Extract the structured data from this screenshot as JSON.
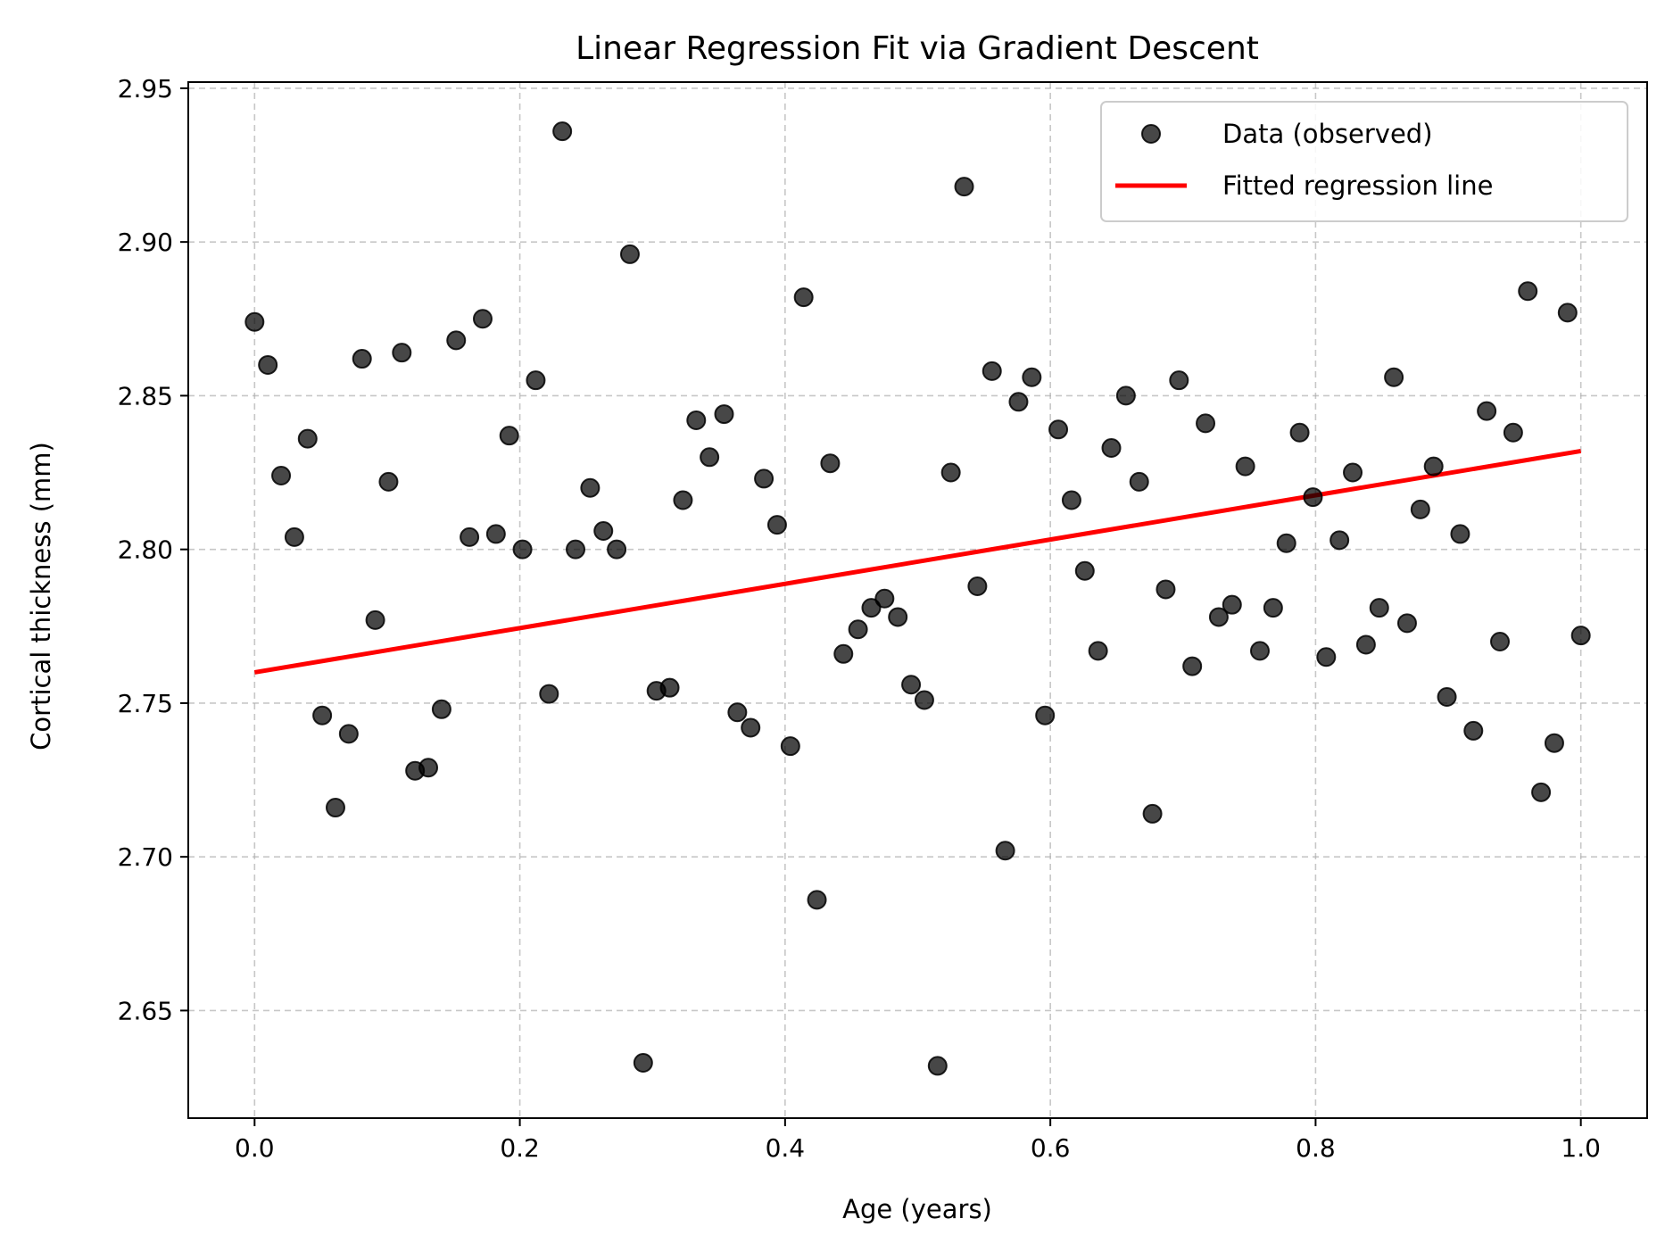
{
  "chart_data": {
    "type": "scatter",
    "title": "Linear Regression Fit via Gradient Descent",
    "xlabel": "Age (years)",
    "ylabel": "Cortical thickness (mm)",
    "xlim": [
      -0.05,
      1.05
    ],
    "ylim": [
      2.615,
      2.952
    ],
    "x_ticks": [
      "0.0",
      "0.2",
      "0.4",
      "0.6",
      "0.8",
      "1.0"
    ],
    "y_ticks": [
      "2.65",
      "2.70",
      "2.75",
      "2.80",
      "2.85",
      "2.90",
      "2.95"
    ],
    "grid": true,
    "legend_position": "top-right",
    "series": [
      {
        "name": "Data (observed)",
        "type": "scatter",
        "color": "#000000",
        "points": [
          [
            0.0,
            2.874
          ],
          [
            0.01,
            2.86
          ],
          [
            0.02,
            2.824
          ],
          [
            0.03,
            2.804
          ],
          [
            0.04,
            2.836
          ],
          [
            0.051,
            2.746
          ],
          [
            0.061,
            2.716
          ],
          [
            0.071,
            2.74
          ],
          [
            0.081,
            2.862
          ],
          [
            0.091,
            2.777
          ],
          [
            0.101,
            2.822
          ],
          [
            0.111,
            2.864
          ],
          [
            0.121,
            2.728
          ],
          [
            0.131,
            2.729
          ],
          [
            0.141,
            2.748
          ],
          [
            0.152,
            2.868
          ],
          [
            0.162,
            2.804
          ],
          [
            0.172,
            2.875
          ],
          [
            0.182,
            2.805
          ],
          [
            0.192,
            2.837
          ],
          [
            0.202,
            2.8
          ],
          [
            0.212,
            2.855
          ],
          [
            0.222,
            2.753
          ],
          [
            0.232,
            2.936
          ],
          [
            0.242,
            2.8
          ],
          [
            0.253,
            2.82
          ],
          [
            0.263,
            2.806
          ],
          [
            0.273,
            2.8
          ],
          [
            0.283,
            2.896
          ],
          [
            0.293,
            2.633
          ],
          [
            0.303,
            2.754
          ],
          [
            0.313,
            2.755
          ],
          [
            0.323,
            2.816
          ],
          [
            0.333,
            2.842
          ],
          [
            0.343,
            2.83
          ],
          [
            0.354,
            2.844
          ],
          [
            0.364,
            2.747
          ],
          [
            0.374,
            2.742
          ],
          [
            0.384,
            2.823
          ],
          [
            0.394,
            2.808
          ],
          [
            0.404,
            2.736
          ],
          [
            0.414,
            2.882
          ],
          [
            0.424,
            2.686
          ],
          [
            0.434,
            2.828
          ],
          [
            0.444,
            2.766
          ],
          [
            0.455,
            2.774
          ],
          [
            0.465,
            2.781
          ],
          [
            0.475,
            2.784
          ],
          [
            0.485,
            2.778
          ],
          [
            0.495,
            2.756
          ],
          [
            0.505,
            2.751
          ],
          [
            0.515,
            2.632
          ],
          [
            0.525,
            2.825
          ],
          [
            0.535,
            2.918
          ],
          [
            0.545,
            2.788
          ],
          [
            0.556,
            2.858
          ],
          [
            0.566,
            2.702
          ],
          [
            0.576,
            2.848
          ],
          [
            0.586,
            2.856
          ],
          [
            0.596,
            2.746
          ],
          [
            0.606,
            2.839
          ],
          [
            0.616,
            2.816
          ],
          [
            0.626,
            2.793
          ],
          [
            0.636,
            2.767
          ],
          [
            0.646,
            2.833
          ],
          [
            0.657,
            2.85
          ],
          [
            0.667,
            2.822
          ],
          [
            0.677,
            2.714
          ],
          [
            0.687,
            2.787
          ],
          [
            0.697,
            2.855
          ],
          [
            0.707,
            2.762
          ],
          [
            0.717,
            2.841
          ],
          [
            0.727,
            2.778
          ],
          [
            0.737,
            2.782
          ],
          [
            0.747,
            2.827
          ],
          [
            0.758,
            2.767
          ],
          [
            0.768,
            2.781
          ],
          [
            0.778,
            2.802
          ],
          [
            0.788,
            2.838
          ],
          [
            0.798,
            2.817
          ],
          [
            0.808,
            2.765
          ],
          [
            0.818,
            2.803
          ],
          [
            0.828,
            2.825
          ],
          [
            0.838,
            2.769
          ],
          [
            0.848,
            2.781
          ],
          [
            0.859,
            2.856
          ],
          [
            0.869,
            2.776
          ],
          [
            0.879,
            2.813
          ],
          [
            0.889,
            2.827
          ],
          [
            0.899,
            2.752
          ],
          [
            0.909,
            2.805
          ],
          [
            0.919,
            2.741
          ],
          [
            0.929,
            2.845
          ],
          [
            0.939,
            2.77
          ],
          [
            0.949,
            2.838
          ],
          [
            0.96,
            2.884
          ],
          [
            0.97,
            2.721
          ],
          [
            0.98,
            2.737
          ],
          [
            0.99,
            2.877
          ],
          [
            1.0,
            2.772
          ]
        ]
      },
      {
        "name": "Fitted regression line",
        "type": "line",
        "color": "#ff0000",
        "points": [
          [
            0.0,
            2.76
          ],
          [
            1.0,
            2.832
          ]
        ]
      }
    ]
  }
}
